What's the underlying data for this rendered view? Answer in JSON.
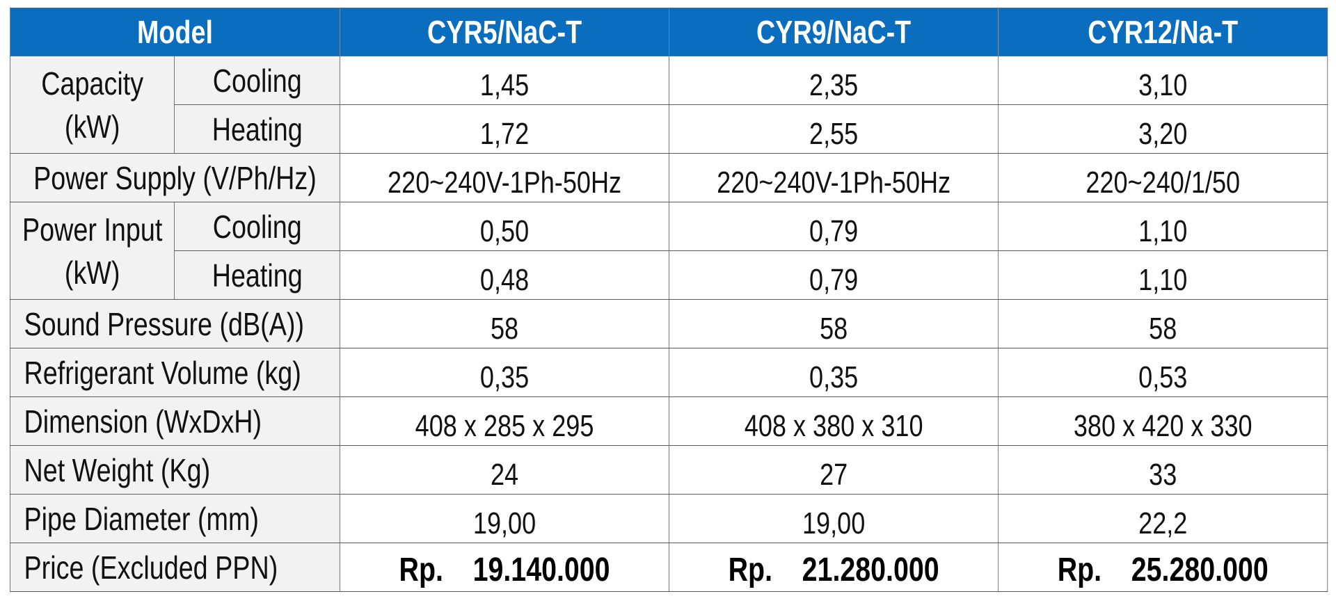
{
  "header": {
    "model_label": "Model",
    "models": [
      "CYR5/NaC-T",
      "CYR9/NaC-T",
      "CYR12/Na-T"
    ]
  },
  "rows": {
    "capacity": {
      "label": "Capacity (kW)",
      "cooling_label": "Cooling",
      "heating_label": "Heating",
      "cooling": [
        "1,45",
        "2,35",
        "3,10"
      ],
      "heating": [
        "1,72",
        "2,55",
        "3,20"
      ]
    },
    "power_supply": {
      "label": "Power Supply (V/Ph/Hz)",
      "values": [
        "220~240V-1Ph-50Hz",
        "220~240V-1Ph-50Hz",
        "220~240/1/50"
      ]
    },
    "power_input": {
      "label": "Power Input (kW)",
      "cooling_label": "Cooling",
      "heating_label": "Heating",
      "cooling": [
        "0,50",
        "0,79",
        "1,10"
      ],
      "heating": [
        "0,48",
        "0,79",
        "1,10"
      ]
    },
    "sound_pressure": {
      "label": "Sound Pressure (dB(A))",
      "values": [
        "58",
        "58",
        "58"
      ]
    },
    "refrigerant_volume": {
      "label": "Refrigerant Volume (kg)",
      "values": [
        "0,35",
        "0,35",
        "0,53"
      ]
    },
    "dimension": {
      "label": "Dimension (WxDxH)",
      "values": [
        "408 x 285 x 295",
        "408 x 380 x 310",
        "380 x 420 x 330"
      ]
    },
    "net_weight": {
      "label": "Net Weight (Kg)",
      "values": [
        "24",
        "27",
        "33"
      ]
    },
    "pipe_diameter": {
      "label": "Pipe Diameter (mm)",
      "values": [
        "19,00",
        "19,00",
        "22,2"
      ]
    },
    "price": {
      "label": "Price (Excluded PPN)",
      "currency": "Rp.",
      "values": [
        "19.140.000",
        "21.280.000",
        "25.280.000"
      ]
    }
  },
  "colors": {
    "header_bg": "#0a6dbd",
    "label_bg": "#f2f2f2",
    "border": "#5a5a5a"
  }
}
